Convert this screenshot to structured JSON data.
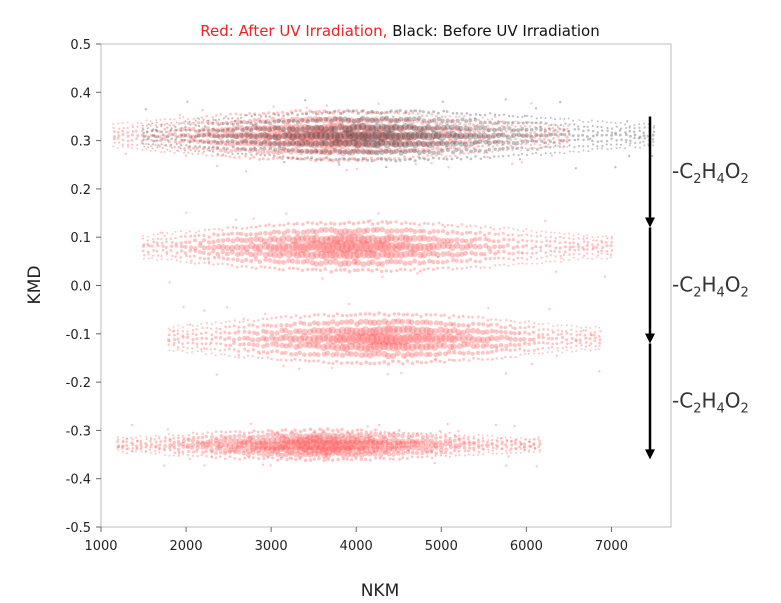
{
  "chart_data": {
    "type": "scatter",
    "title": {
      "red_part": "Red: After UV Irradiation,",
      "black_part": " Black: Before UV Irradiation"
    },
    "xlabel": "NKM",
    "ylabel": "KMD",
    "xlim": [
      1000,
      7700
    ],
    "ylim": [
      -0.5,
      0.5
    ],
    "xticks": [
      "1000",
      "2000",
      "3000",
      "4000",
      "5000",
      "6000",
      "7000"
    ],
    "yticks": [
      "0.5",
      "0.4",
      "0.3",
      "0.2",
      "0.1",
      "0.0",
      "-0.1",
      "-0.2",
      "-0.3",
      "-0.4",
      "-0.5"
    ],
    "grid": false,
    "colors": {
      "after": "#ff5a5a",
      "before": "#3a3a3a"
    },
    "series": [
      {
        "label": "After UV Irradiation",
        "color": "#ff5a5a",
        "bands": [
          {
            "kmd": 0.31,
            "x_range": [
              1150,
              6500
            ],
            "peak": 3700,
            "spread": 0.05
          },
          {
            "kmd": 0.08,
            "x_range": [
              1500,
              7000
            ],
            "peak": 3900,
            "spread": 0.05
          },
          {
            "kmd": -0.11,
            "x_range": [
              1800,
              6900
            ],
            "peak": 4300,
            "spread": 0.05
          },
          {
            "kmd": -0.33,
            "x_range": [
              1200,
              6200
            ],
            "peak": 3600,
            "spread": 0.03
          }
        ]
      },
      {
        "label": "Before UV Irradiation",
        "color": "#3a3a3a",
        "bands": [
          {
            "kmd": 0.31,
            "x_range": [
              1500,
              7500
            ],
            "peak": 4200,
            "spread": 0.05
          }
        ]
      }
    ],
    "annotations": [
      {
        "from_kmd": 0.35,
        "to_kmd": 0.12,
        "label": "-C",
        "sub1": "2",
        "mid1": "H",
        "sub2": "4",
        "mid2": "O",
        "sub3": "2"
      },
      {
        "from_kmd": 0.12,
        "to_kmd": -0.12,
        "label": "-C",
        "sub1": "2",
        "mid1": "H",
        "sub2": "4",
        "mid2": "O",
        "sub3": "2"
      },
      {
        "from_kmd": -0.12,
        "to_kmd": -0.36,
        "label": "-C",
        "sub1": "2",
        "mid1": "H",
        "sub2": "4",
        "mid2": "O",
        "sub3": "2"
      }
    ]
  }
}
